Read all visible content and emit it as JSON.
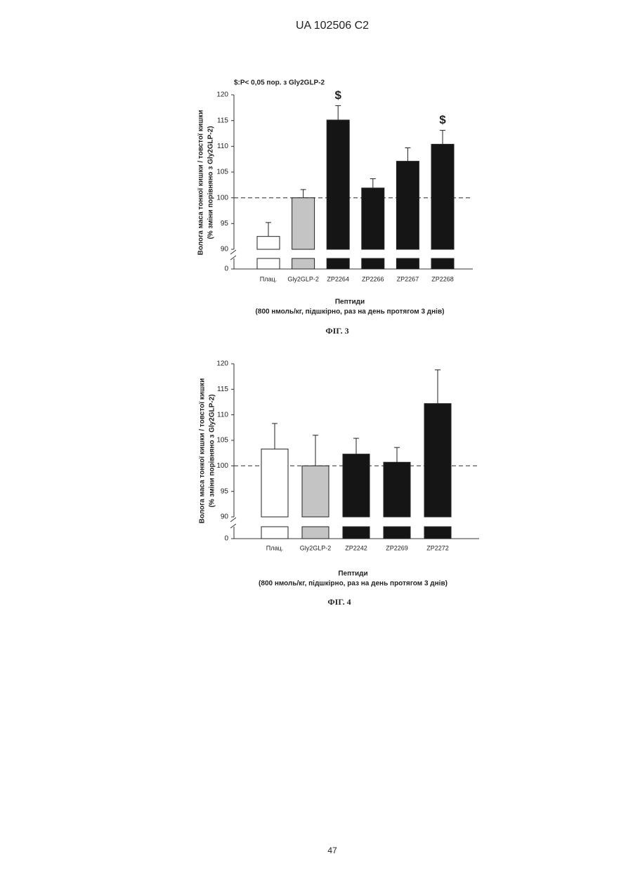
{
  "header": "UA   102506   C2",
  "page_number": "47",
  "chart_data": [
    {
      "type": "bar",
      "note": "$:P< 0,05 пор. з Gly2GLP-2",
      "ylabel": [
        "Волога маса тонкої кишки / товстої кишки",
        "(% зміни порівняно з Gly2GLP-2)"
      ],
      "xlabel": [
        "Пептиди",
        "(800 нмоль/кг, підшкірно, раз на день протягом 3 днів)"
      ],
      "caption": "ФІГ. 3",
      "categories": [
        "Плац.",
        "Gly2GLP-2",
        "ZP2264",
        "ZP2266",
        "ZP2267",
        "ZP2268"
      ],
      "values": [
        92.5,
        100,
        115.1,
        101.9,
        107.1,
        110.4
      ],
      "errors": [
        2.7,
        1.6,
        2.8,
        1.8,
        2.6,
        2.7
      ],
      "significance": [
        null,
        null,
        "$",
        null,
        null,
        "$"
      ],
      "colors": [
        "#ffffff",
        "#c4c4c4",
        "#151515",
        "#151515",
        "#151515",
        "#151515"
      ],
      "ylim": [
        0,
        120
      ],
      "axis_break": [
        0,
        90
      ],
      "yticks": [
        0,
        90,
        95,
        100,
        105,
        110,
        115,
        120
      ],
      "reference_line": 100
    },
    {
      "type": "bar",
      "ylabel": [
        "Волога маса тонкої кишки / товстої кишки",
        "(% зміни порівняно з Gly2GLP-2)"
      ],
      "xlabel": [
        "Пептиди",
        "(800 нмоль/кг, підшкірно, раз на день протягом 3 днів)"
      ],
      "caption": "ФІГ. 4",
      "categories": [
        "Плац.",
        "Gly2GLP-2",
        "ZP2242",
        "ZP2269",
        "ZP2272"
      ],
      "values": [
        103.3,
        100,
        102.3,
        100.7,
        112.2
      ],
      "errors": [
        5.0,
        6.0,
        3.1,
        2.9,
        6.6
      ],
      "colors": [
        "#ffffff",
        "#c4c4c4",
        "#151515",
        "#151515",
        "#151515"
      ],
      "ylim": [
        0,
        120
      ],
      "axis_break": [
        0,
        90
      ],
      "yticks": [
        0,
        90,
        95,
        100,
        105,
        110,
        115,
        120
      ],
      "reference_line": 100
    }
  ]
}
